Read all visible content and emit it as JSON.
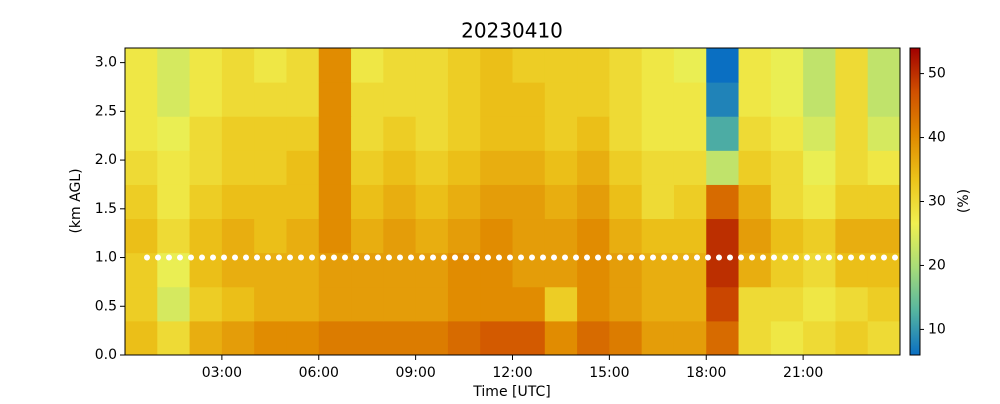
{
  "chart_data": {
    "type": "heatmap",
    "title": "20230410",
    "xlabel": "Time [UTC]",
    "ylabel": "(km AGL)",
    "colorbar_label": "(%)",
    "x": [
      0,
      1,
      2,
      3,
      4,
      5,
      6,
      7,
      8,
      9,
      10,
      11,
      12,
      13,
      14,
      15,
      16,
      17,
      18,
      19,
      20,
      21,
      22,
      23,
      24
    ],
    "y": [
      0,
      0.35,
      0.7,
      1.05,
      1.4,
      1.75,
      2.1,
      2.45,
      2.8,
      3.15
    ],
    "z": [
      [
        34,
        30,
        36,
        38,
        40,
        40,
        42,
        42,
        42,
        42,
        44,
        46,
        46,
        40,
        44,
        42,
        38,
        38,
        44,
        30,
        28,
        30,
        32,
        30
      ],
      [
        32,
        24,
        32,
        34,
        36,
        36,
        38,
        38,
        38,
        38,
        40,
        40,
        40,
        32,
        40,
        38,
        36,
        36,
        48,
        30,
        30,
        28,
        30,
        32
      ],
      [
        32,
        26,
        34,
        36,
        36,
        36,
        38,
        38,
        38,
        38,
        40,
        40,
        38,
        38,
        40,
        38,
        36,
        36,
        50,
        36,
        32,
        30,
        34,
        34
      ],
      [
        34,
        30,
        34,
        36,
        34,
        36,
        40,
        36,
        38,
        36,
        38,
        40,
        38,
        38,
        40,
        36,
        34,
        34,
        50,
        38,
        34,
        32,
        36,
        36
      ],
      [
        32,
        28,
        32,
        34,
        34,
        34,
        40,
        34,
        36,
        34,
        36,
        38,
        38,
        36,
        38,
        34,
        30,
        32,
        44,
        36,
        30,
        28,
        32,
        32
      ],
      [
        30,
        28,
        30,
        32,
        32,
        34,
        40,
        32,
        34,
        32,
        34,
        36,
        36,
        34,
        36,
        32,
        30,
        30,
        22,
        32,
        30,
        26,
        30,
        28
      ],
      [
        28,
        26,
        30,
        32,
        32,
        32,
        40,
        30,
        32,
        30,
        32,
        34,
        34,
        32,
        34,
        30,
        28,
        28,
        12,
        30,
        28,
        24,
        30,
        24
      ],
      [
        28,
        24,
        28,
        30,
        30,
        30,
        40,
        30,
        30,
        30,
        32,
        34,
        34,
        32,
        32,
        30,
        28,
        28,
        8,
        28,
        26,
        22,
        30,
        22
      ],
      [
        28,
        24,
        28,
        30,
        28,
        30,
        40,
        28,
        30,
        30,
        32,
        34,
        32,
        32,
        32,
        30,
        28,
        26,
        6,
        28,
        26,
        22,
        30,
        22
      ]
    ],
    "xlim": [
      0,
      24
    ],
    "xticks": [
      {
        "value": 3,
        "label": "03:00"
      },
      {
        "value": 6,
        "label": "06:00"
      },
      {
        "value": 9,
        "label": "09:00"
      },
      {
        "value": 12,
        "label": "12:00"
      },
      {
        "value": 15,
        "label": "15:00"
      },
      {
        "value": 18,
        "label": "18:00"
      },
      {
        "value": 21,
        "label": "21:00"
      }
    ],
    "ylim": [
      0,
      3.15
    ],
    "yticks": [
      {
        "value": 0,
        "label": "0.0"
      },
      0.5,
      {
        "value": 1,
        "label": "1.0"
      },
      1.5,
      {
        "value": 2,
        "label": "2.0"
      },
      2.5,
      {
        "value": 3,
        "label": "3.0"
      }
    ],
    "marker_height": 1.0,
    "marker_color": "#ffffff",
    "clim": [
      6,
      54
    ],
    "cticks": [
      10,
      20,
      30,
      40,
      50
    ],
    "colormap": [
      "#0a6fc2",
      "#55b5a0",
      "#a8dc78",
      "#f0f050",
      "#ecc41a",
      "#e08a00",
      "#d05000",
      "#a00000"
    ]
  }
}
